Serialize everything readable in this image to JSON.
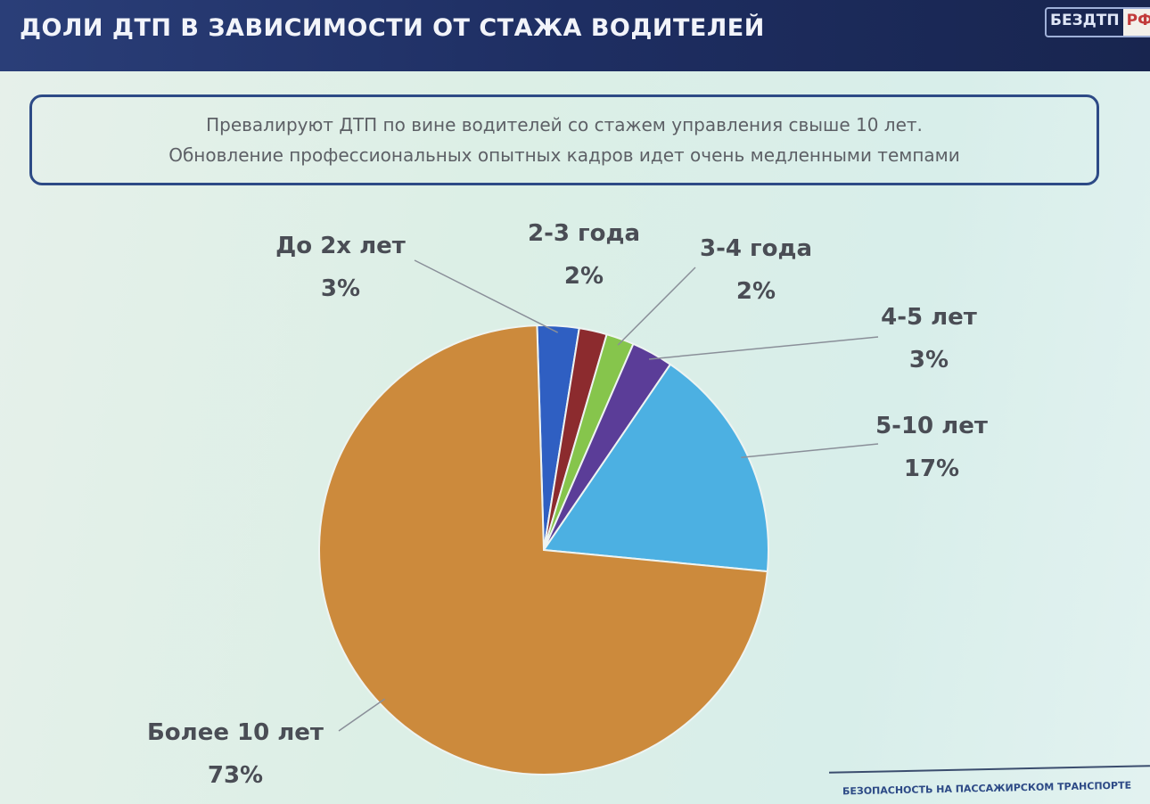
{
  "header": {
    "title": "ДОЛИ ДТП В ЗАВИСИМОСТИ ОТ СТАЖА ВОДИТЕЛЕЙ",
    "logo_text": "БЕЗДТП",
    "logo_suffix": "РФ"
  },
  "callout": {
    "line1": "Превалируют ДТП по вине водителей со стажем управления свыше 10 лет.",
    "line2": "Обновление профессиональных опытных кадров идет очень медленными темпами"
  },
  "footer": {
    "text": "БЕЗОПАСНОСТЬ НА ПАССАЖИРСКОМ ТРАНСПОРТЕ"
  },
  "chart_data": {
    "type": "pie",
    "title": "",
    "categories": [
      "До 2х лет",
      "2-3 года",
      "3-4 года",
      "4-5 лет",
      "5-10 лет",
      "Более 10 лет"
    ],
    "values": [
      3,
      2,
      2,
      3,
      17,
      73
    ],
    "value_labels": [
      "3%",
      "2%",
      "2%",
      "3%",
      "17%",
      "73%"
    ],
    "colors": [
      "#2f5fc2",
      "#8c2b2e",
      "#86c54c",
      "#5b3d98",
      "#4cb0e2",
      "#cc8a3c"
    ],
    "start": "top",
    "direction": "clockwise",
    "legend": "none"
  }
}
